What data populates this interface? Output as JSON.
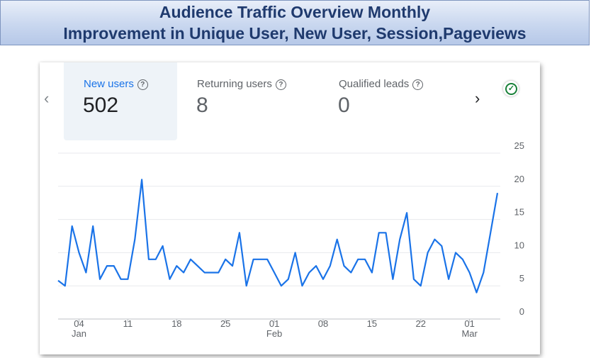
{
  "banner": {
    "line1": "Audience Traffic Overview Monthly",
    "line2": "Improvement in Unique User, New User, Session,Pageviews"
  },
  "metrics": [
    {
      "label": "New users",
      "value": "502",
      "selected": true
    },
    {
      "label": "Returning users",
      "value": "8",
      "selected": false
    },
    {
      "label": "Qualified leads",
      "value": "0",
      "selected": false
    }
  ],
  "icons": {
    "prev": "chevron-left-icon",
    "next": "chevron-right-icon",
    "help": "help-circle-icon",
    "status": "check-circle-icon"
  },
  "colors": {
    "line": "#1a73e8",
    "selected_label": "#1a73e8",
    "status": "#188038"
  },
  "chart_data": {
    "type": "line",
    "title": "",
    "xlabel": "",
    "ylabel": "",
    "ylim": [
      0,
      25
    ],
    "yticks": [
      "0",
      "5",
      "10",
      "15",
      "20",
      "25"
    ],
    "xticks": [
      {
        "day": 4,
        "label": "04",
        "sub": "Jan"
      },
      {
        "day": 11,
        "label": "11",
        "sub": ""
      },
      {
        "day": 18,
        "label": "18",
        "sub": ""
      },
      {
        "day": 25,
        "label": "25",
        "sub": ""
      },
      {
        "day": 32,
        "label": "01",
        "sub": "Feb"
      },
      {
        "day": 39,
        "label": "08",
        "sub": ""
      },
      {
        "day": 46,
        "label": "15",
        "sub": ""
      },
      {
        "day": 53,
        "label": "22",
        "sub": ""
      },
      {
        "day": 60,
        "label": "01",
        "sub": "Mar"
      }
    ],
    "x_start_day": 1,
    "grid": true,
    "series": [
      {
        "values": [
          5.8,
          5,
          14,
          10,
          7,
          14,
          6,
          8,
          8,
          6,
          6,
          12,
          21,
          9,
          9,
          11,
          6,
          8,
          7,
          9,
          8,
          7,
          7,
          7,
          9,
          8,
          13,
          5,
          9,
          9,
          9,
          7,
          5,
          6,
          10,
          5,
          7,
          8,
          6,
          8,
          12,
          8,
          7,
          9,
          9,
          7,
          13,
          13,
          6,
          12,
          16,
          6,
          5,
          10,
          12,
          11,
          6,
          10,
          9,
          7,
          4,
          7,
          13,
          19
        ]
      }
    ]
  }
}
